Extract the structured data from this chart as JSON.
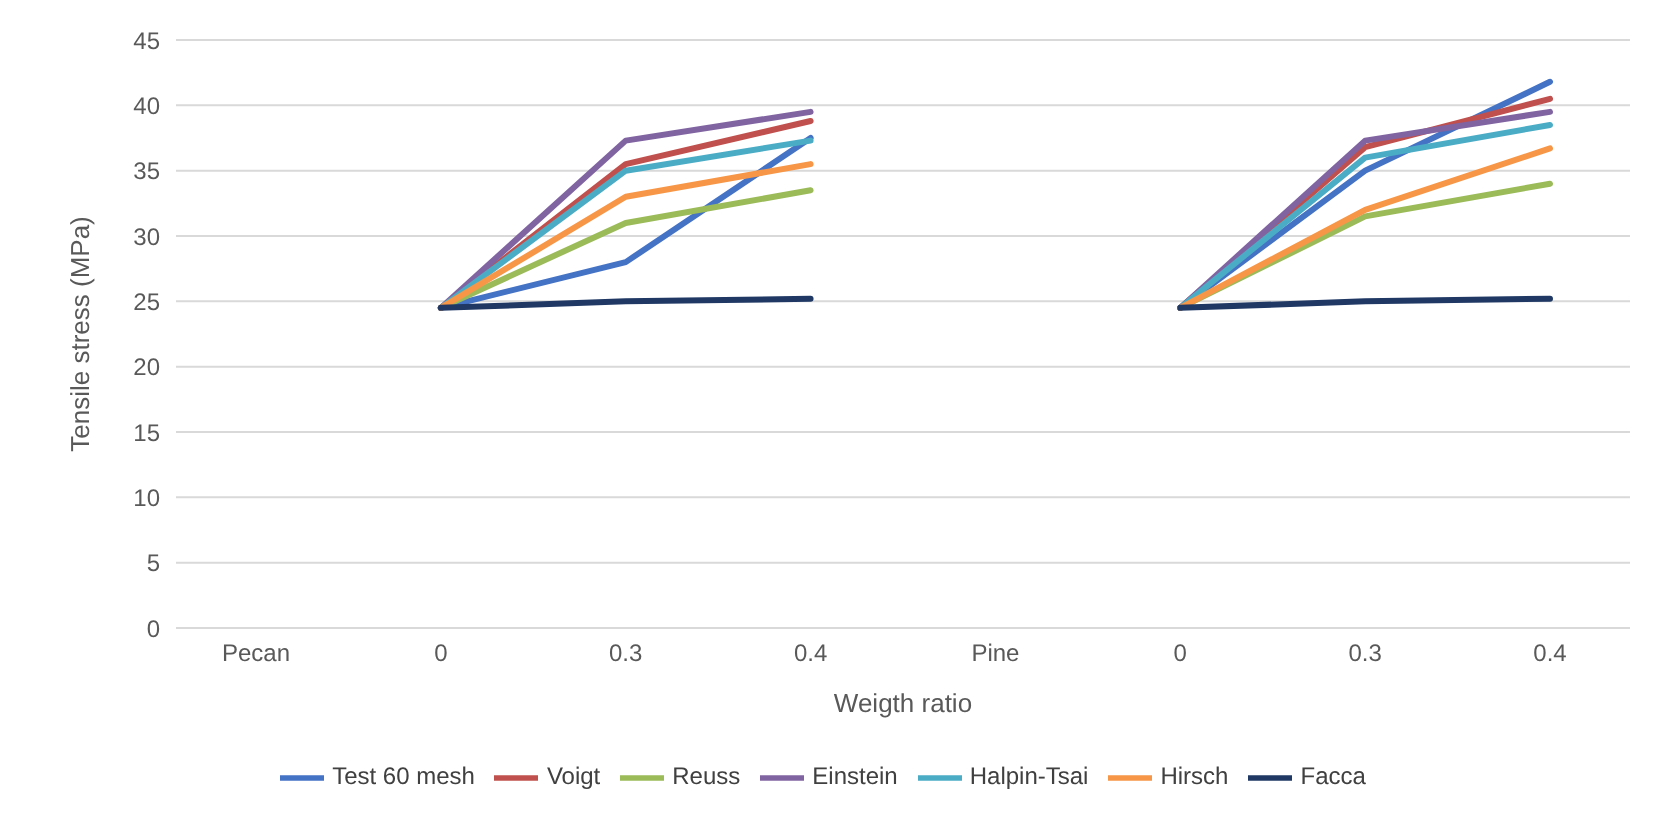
{
  "chart_data": {
    "type": "line",
    "xlabel": "Weigth ratio",
    "ylabel": "Tensile stress (MPa)",
    "categories": [
      "Pecan",
      "0",
      "0.3",
      "0.4",
      "Pine",
      "0",
      "0.3",
      "0.4"
    ],
    "series": [
      {
        "name": "Test 60 mesh",
        "color": "#4472c4",
        "values": [
          null,
          24.5,
          28,
          37.5,
          null,
          24.5,
          35,
          41.8
        ]
      },
      {
        "name": "Voigt",
        "color": "#c0504d",
        "values": [
          null,
          24.5,
          35.5,
          38.8,
          null,
          24.5,
          36.8,
          40.5
        ]
      },
      {
        "name": "Reuss",
        "color": "#9bbb59",
        "values": [
          null,
          24.5,
          31,
          33.5,
          null,
          24.5,
          31.5,
          34
        ]
      },
      {
        "name": "Einstein",
        "color": "#8064a2",
        "values": [
          null,
          24.5,
          37.3,
          39.5,
          null,
          24.5,
          37.3,
          39.5
        ]
      },
      {
        "name": "Halpin-Tsai",
        "color": "#4bacc6",
        "values": [
          null,
          24.5,
          35,
          37.3,
          null,
          24.5,
          36,
          38.5
        ]
      },
      {
        "name": "Hirsch",
        "color": "#f79646",
        "values": [
          null,
          24.5,
          33,
          35.5,
          null,
          24.5,
          32,
          36.7
        ]
      },
      {
        "name": "Facca",
        "color": "#1f3864",
        "values": [
          null,
          24.5,
          25,
          25.2,
          null,
          24.5,
          25,
          25.2
        ]
      }
    ],
    "ylim": [
      0,
      45
    ],
    "yticks": [
      0,
      5,
      10,
      15,
      20,
      25,
      30,
      35,
      40,
      45
    ],
    "grid": "y",
    "legend": "bottom",
    "marker": "none",
    "line_style": "solid"
  }
}
